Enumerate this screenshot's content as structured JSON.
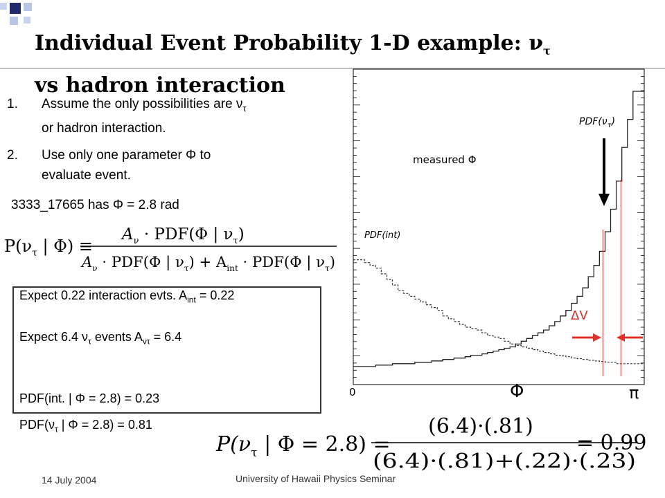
{
  "slide": {
    "title_line1": "Individual Event Probability  1-D example: ν",
    "title_line1_sub": "τ",
    "title_line2": "vs hadron interaction",
    "items": [
      {
        "number": "1.",
        "line1": "Assume the only possibilities are ν",
        "line1_sub": "τ",
        "line2": "or  hadron interaction."
      },
      {
        "number": "2.",
        "line1": " Use only one parameter  Φ  to",
        "line2": "evaluate event."
      }
    ],
    "event_line": "3333_17665    has Φ = 2.8 rad",
    "box": {
      "line1": "Expect  0.22   interaction evts.  A",
      "line1_sub": "int",
      "line1_tail": " = 0.22",
      "line2": "Expect  6.4  ν",
      "line2_sub": "τ",
      "line2_mid": "  events          A",
      "line2_sub2": "ντ",
      "line2_tail": "  =  6.4",
      "line3": "PDF(int. |  Φ = 2.8)      =   0.23",
      "line4": "PDF(ν",
      "line4_sub": "τ",
      "line4_tail": " |  Φ = 2.8)      =   0.81"
    },
    "formula1": {
      "lhs": "P(ν",
      "lhs_sub": "τ",
      "lhs_tail": " | Φ) ≡",
      "numerator": "A",
      "numerator_sub": "ν",
      "numerator_tail": " · PDF(Φ | ν",
      "numerator_sub2": "τ",
      "numerator_end": ")",
      "denominator": "A",
      "denominator_sub": "ν",
      "denominator_mid": " · PDF(Φ | ν",
      "denominator_sub2": "τ",
      "denominator_mid2": ") + A",
      "denominator_sub3": "int",
      "denominator_end": " · PDF(Φ | ν",
      "denominator_sub4": "τ",
      "denominator_close": ")"
    },
    "formula2": {
      "lhs": "P(ν",
      "lhs_sub": "τ",
      "lhs_tail": " | Φ = 2.8) =",
      "numerator": "(6.4)·(.81)",
      "denominator": "(6.4)·(.81)+(.22)·(.23)",
      "result": "= 0.99"
    },
    "footer_date": "14 July 2004",
    "footer_center": "University of Hawaii Physics Seminar"
  },
  "plot": {
    "label_pdf_nu": "PDF(ν",
    "label_pdf_nu_sub": "τ",
    "label_pdf_nu_close": ")",
    "label_pdf_int": "PDF(int)",
    "label_measured": "measured  Φ",
    "label_delta_v": "ΔV",
    "axis_zero": "0",
    "axis_phi": "Φ",
    "axis_pi": "π",
    "colors": {
      "accent_red": "#e0302a",
      "grid_bg": "#ffffff",
      "decor_navy": "#1e2a6b",
      "decor_blue": "#b8c6e6"
    }
  },
  "chart_data": {
    "type": "histogram",
    "x_range": [
      0,
      3.1416
    ],
    "measured_phi": 2.8,
    "series": [
      {
        "name": "PDF(ντ)",
        "style": "solid",
        "values": [
          0.02,
          0.02,
          0.02,
          0.02,
          0.025,
          0.025,
          0.025,
          0.03,
          0.03,
          0.03,
          0.03,
          0.035,
          0.035,
          0.035,
          0.04,
          0.04,
          0.045,
          0.045,
          0.05,
          0.05,
          0.055,
          0.06,
          0.06,
          0.065,
          0.07,
          0.075,
          0.08,
          0.085,
          0.09,
          0.1,
          0.11,
          0.12,
          0.13,
          0.14,
          0.15,
          0.165,
          0.18,
          0.2,
          0.22,
          0.245,
          0.27,
          0.3,
          0.34,
          0.38,
          0.43,
          0.5,
          0.58,
          0.68,
          0.8,
          0.9,
          1.0,
          1.0
        ]
      },
      {
        "name": "PDF(int)",
        "style": "dashed",
        "values": [
          0.4,
          0.4,
          0.39,
          0.38,
          0.37,
          0.35,
          0.33,
          0.31,
          0.29,
          0.28,
          0.27,
          0.26,
          0.25,
          0.24,
          0.23,
          0.22,
          0.2,
          0.19,
          0.18,
          0.17,
          0.16,
          0.155,
          0.15,
          0.14,
          0.13,
          0.125,
          0.12,
          0.11,
          0.1,
          0.095,
          0.09,
          0.085,
          0.08,
          0.075,
          0.07,
          0.065,
          0.06,
          0.058,
          0.055,
          0.05,
          0.048,
          0.045,
          0.042,
          0.04,
          0.038,
          0.035,
          0.035,
          0.03,
          0.03,
          0.03,
          0.03,
          0.03
        ]
      }
    ]
  }
}
